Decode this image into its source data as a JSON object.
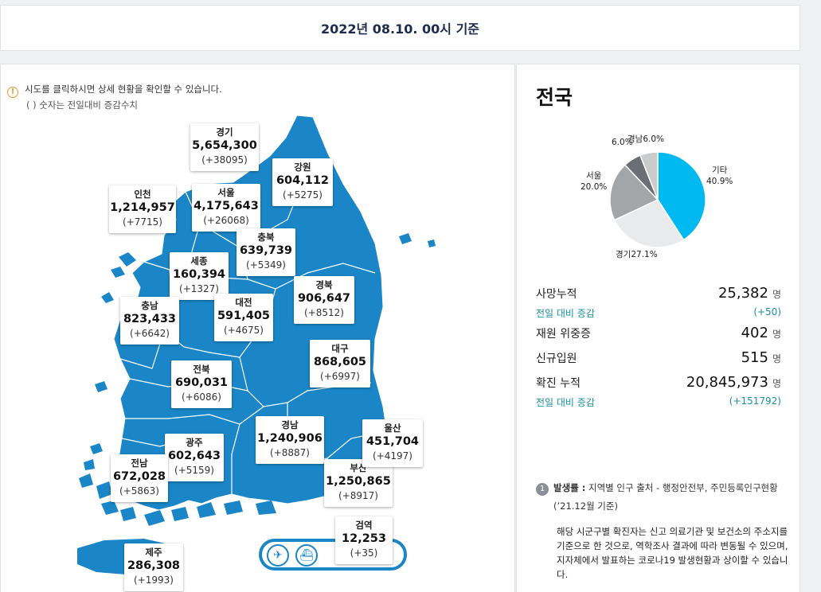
{
  "header": {
    "timestamp": "2022년 08.10. 00시 기준"
  },
  "notice": {
    "line1": "시도를 클릭하시면 상세 현황을 확인할 수 있습니다.",
    "line2": "( ) 숫자는 전일대비 증감수치",
    "icon": "info-icon"
  },
  "regions": [
    {
      "id": "gyeonggi",
      "name": "경기",
      "total": "5,654,300",
      "delta": "(+38095)"
    },
    {
      "id": "gangwon",
      "name": "강원",
      "total": "604,112",
      "delta": "(+5275)"
    },
    {
      "id": "incheon",
      "name": "인천",
      "total": "1,214,957",
      "delta": "(+7715)"
    },
    {
      "id": "seoul",
      "name": "서울",
      "total": "4,175,643",
      "delta": "(+26068)"
    },
    {
      "id": "chungbuk",
      "name": "충북",
      "total": "639,739",
      "delta": "(+5349)"
    },
    {
      "id": "sejong",
      "name": "세종",
      "total": "160,394",
      "delta": "(+1327)"
    },
    {
      "id": "gyeongbuk",
      "name": "경북",
      "total": "906,647",
      "delta": "(+8512)"
    },
    {
      "id": "chungnam",
      "name": "충남",
      "total": "823,433",
      "delta": "(+6642)"
    },
    {
      "id": "daejeon",
      "name": "대전",
      "total": "591,405",
      "delta": "(+4675)"
    },
    {
      "id": "daegu",
      "name": "대구",
      "total": "868,605",
      "delta": "(+6997)"
    },
    {
      "id": "jeonbuk",
      "name": "전북",
      "total": "690,031",
      "delta": "(+6086)"
    },
    {
      "id": "gyeongnam",
      "name": "경남",
      "total": "1,240,906",
      "delta": "(+8887)"
    },
    {
      "id": "ulsan",
      "name": "울산",
      "total": "451,704",
      "delta": "(+4197)"
    },
    {
      "id": "gwangju",
      "name": "광주",
      "total": "602,643",
      "delta": "(+5159)"
    },
    {
      "id": "jeonnam",
      "name": "전남",
      "total": "672,028",
      "delta": "(+5863)"
    },
    {
      "id": "busan",
      "name": "부산",
      "total": "1,250,865",
      "delta": "(+8917)"
    },
    {
      "id": "quarantine",
      "name": "검역",
      "total": "12,253",
      "delta": "(+35)"
    },
    {
      "id": "jeju",
      "name": "제주",
      "total": "286,308",
      "delta": "(+1993)"
    }
  ],
  "transport": {
    "air_icon": "airplane-icon",
    "ship_icon": "ship-icon"
  },
  "summary": {
    "title": "전국",
    "pie": [
      {
        "label": "기타",
        "pct": "40.9%",
        "value": 40.9,
        "color": "#00b9f1"
      },
      {
        "label": "경기",
        "pct": "27.1%",
        "value": 27.1,
        "color": "#e9eaeb"
      },
      {
        "label": "서울",
        "pct": "20.0%",
        "value": 20.0,
        "color": "#a3a6a9"
      },
      {
        "label": "",
        "pct": "6.0%",
        "value": 6.0,
        "color": "#6b6e72"
      },
      {
        "label": "경남",
        "pct": "6.0%",
        "value": 6.0,
        "color": "#c9cbcd"
      }
    ],
    "stats": {
      "deaths_label": "사망누적",
      "deaths_value": "25,382",
      "deaths_unit": "명",
      "deaths_delta_label": "전일 대비 증감",
      "deaths_delta": "(+50)",
      "critical_label": "재원 위중증",
      "critical_value": "402",
      "critical_unit": "명",
      "new_adm_label": "신규입원",
      "new_adm_value": "515",
      "new_adm_unit": "명",
      "confirmed_label": "확진 누적",
      "confirmed_value": "20,845,973",
      "confirmed_unit": "명",
      "confirmed_delta_label": "전일 대비 증감",
      "confirmed_delta": "(+151792)"
    },
    "footnote": {
      "num": "1",
      "title": "발생률 :",
      "text": "지역별 인구 출처 - 행정안전부, 주민등록인구현황",
      "date": "(’21.12월 기준)",
      "desc": "해당 시군구별 확진자는 신고 의료기관 및 보건소의 주소지를 기준으로 한 것으로, 역학조사 결과에 따라 변동될 수 있으며, 지자체에서 발표하는 코로나19 발생현황과 상이할 수 있습니다."
    }
  }
}
